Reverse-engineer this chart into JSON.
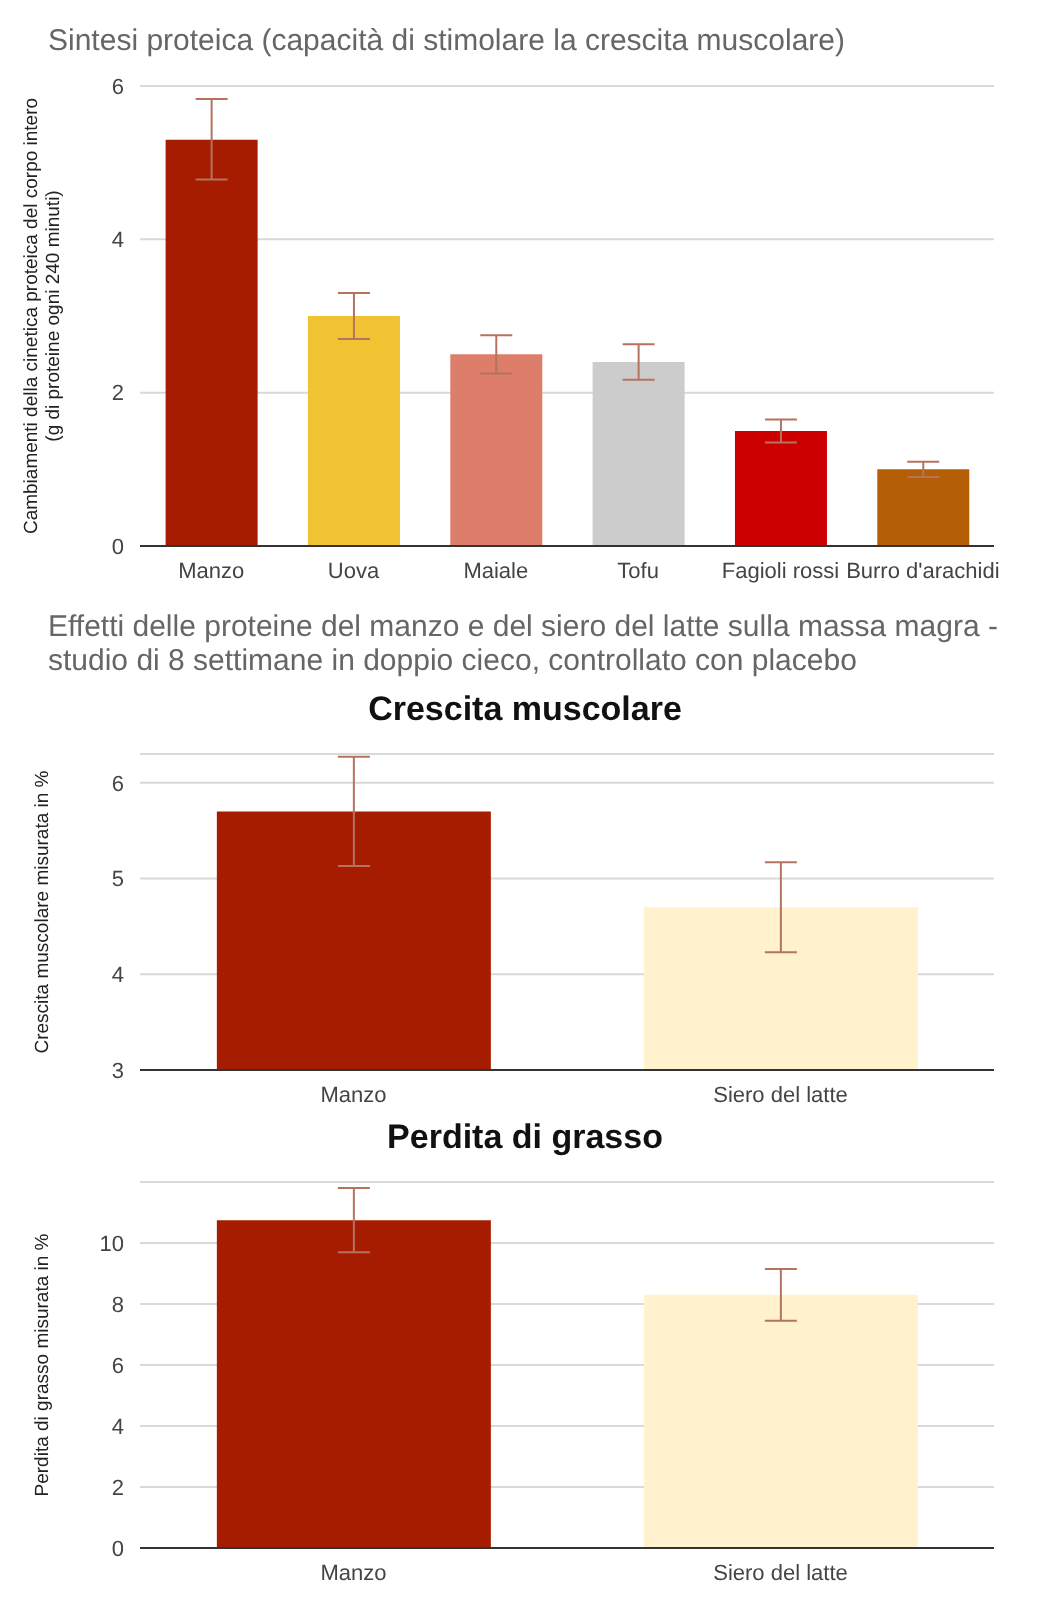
{
  "chart_data": [
    {
      "type": "bar",
      "title": "Sintesi proteica (capacità di stimolare la crescita muscolare)",
      "ylabel": "Cambiamenti della cinetica proteica del corpo intero\n(g di proteine ogni 240 minuti)",
      "categories": [
        "Manzo",
        "Uova",
        "Maiale",
        "Tofu",
        "Fagioli rossi",
        "Burro d'arachidi"
      ],
      "values": [
        5.3,
        3.0,
        2.5,
        2.4,
        1.5,
        1.0
      ],
      "colors": [
        "#a61c00",
        "#f1c232",
        "#dd7e6b",
        "#cccccc",
        "#cc0000",
        "#b45f06"
      ],
      "errors": [
        [
          4.78,
          5.83
        ],
        [
          2.7,
          3.3
        ],
        [
          2.25,
          2.75
        ],
        [
          2.17,
          2.63
        ],
        [
          1.35,
          1.65
        ],
        [
          0.9,
          1.1
        ]
      ],
      "ylim": [
        0,
        6
      ],
      "yticks": [
        0,
        2,
        4,
        6
      ],
      "grid": "y",
      "legend": false
    },
    {
      "type": "bar",
      "title": "Effetti delle proteine del manzo e del siero del latte sulla massa magra - studio di 8 settimane in doppio cieco, controllato con placebo",
      "subtitle": "Crescita muscolare",
      "ylabel": "Crescita muscolare misurata in %",
      "categories": [
        "Manzo",
        "Siero del latte"
      ],
      "values": [
        5.7,
        4.7
      ],
      "colors": [
        "#a61c00",
        "#fff2cc"
      ],
      "errors": [
        [
          5.13,
          6.27
        ],
        [
          4.23,
          5.17
        ]
      ],
      "ylim": [
        3,
        6.3
      ],
      "yticks": [
        3,
        4,
        5,
        6
      ],
      "grid": "y",
      "legend": false
    },
    {
      "type": "bar",
      "title": "Perdita di grasso",
      "ylabel": "Perdita di grasso misurata in %",
      "categories": [
        "Manzo",
        "Siero del latte"
      ],
      "values": [
        10.75,
        8.3
      ],
      "colors": [
        "#a61c00",
        "#fff2cc"
      ],
      "errors": [
        [
          9.7,
          11.8
        ],
        [
          7.45,
          9.15
        ]
      ],
      "ylim": [
        0,
        12
      ],
      "yticks": [
        0,
        2,
        4,
        6,
        8,
        10
      ],
      "grid": "y",
      "legend": false
    }
  ]
}
